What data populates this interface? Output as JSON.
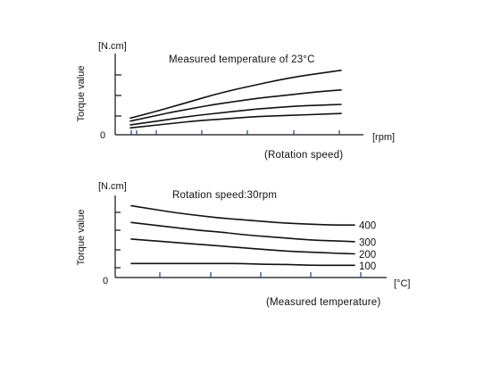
{
  "chart_data": [
    {
      "type": "line",
      "title": "Measured temperature of 23°C",
      "ylabel": "Torque value",
      "y_unit": "[N.cm]",
      "x_unit": "[rpm]",
      "xlabel": "(Rotation speed)",
      "origin_label": "0",
      "grid": false,
      "x": [
        0.0,
        0.1,
        0.2,
        0.3,
        0.4,
        0.5,
        0.6,
        0.7,
        0.8,
        0.9,
        1.0
      ],
      "series": [
        {
          "name": "",
          "values": [
            0.22,
            0.29,
            0.37,
            0.45,
            0.53,
            0.6,
            0.66,
            0.72,
            0.77,
            0.81,
            0.85
          ]
        },
        {
          "name": "",
          "values": [
            0.18,
            0.24,
            0.3,
            0.35,
            0.4,
            0.44,
            0.48,
            0.51,
            0.54,
            0.57,
            0.59
          ]
        },
        {
          "name": "",
          "values": [
            0.13,
            0.17,
            0.21,
            0.25,
            0.28,
            0.31,
            0.34,
            0.36,
            0.38,
            0.39,
            0.4
          ]
        },
        {
          "name": "",
          "values": [
            0.09,
            0.12,
            0.15,
            0.18,
            0.2,
            0.22,
            0.24,
            0.25,
            0.26,
            0.27,
            0.28
          ]
        }
      ]
    },
    {
      "type": "line",
      "title": "Rotation speed:30rpm",
      "ylabel": "Torque value",
      "y_unit": "[N.cm]",
      "x_unit": "[°C]",
      "xlabel": "(Measured temperature)",
      "origin_label": "0",
      "grid": false,
      "x": [
        0.0,
        0.1,
        0.2,
        0.3,
        0.4,
        0.5,
        0.6,
        0.7,
        0.8,
        0.9,
        1.0
      ],
      "series": [
        {
          "name": "400",
          "values": [
            0.82,
            0.78,
            0.74,
            0.71,
            0.68,
            0.66,
            0.64,
            0.62,
            0.61,
            0.6,
            0.6
          ]
        },
        {
          "name": "300",
          "values": [
            0.63,
            0.6,
            0.57,
            0.54,
            0.52,
            0.49,
            0.47,
            0.45,
            0.43,
            0.42,
            0.41
          ]
        },
        {
          "name": "200",
          "values": [
            0.44,
            0.42,
            0.4,
            0.38,
            0.36,
            0.34,
            0.32,
            0.3,
            0.29,
            0.28,
            0.27
          ]
        },
        {
          "name": "100",
          "values": [
            0.16,
            0.16,
            0.16,
            0.16,
            0.16,
            0.16,
            0.15,
            0.15,
            0.14,
            0.14,
            0.14
          ]
        }
      ]
    }
  ]
}
